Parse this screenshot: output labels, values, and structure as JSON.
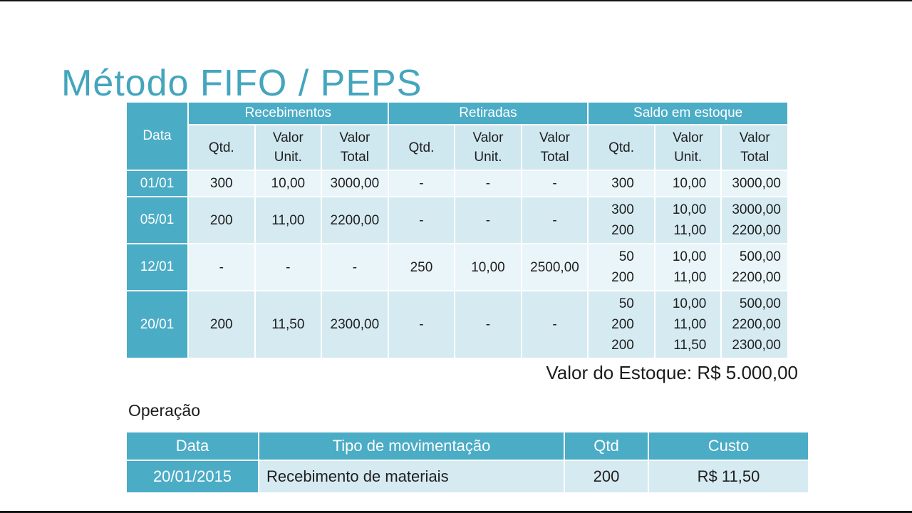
{
  "colors": {
    "accent_teal": "#4BACC6",
    "band_light": "#EAF5F9",
    "band_dark": "#D6EAF1",
    "subheader_fill": "#CFE7EF",
    "title_teal": "#44A5BD"
  },
  "title": "Método FIFO / PEPS",
  "stock_value_text": "Valor do Estoque: R$ 5.000,00",
  "operation_label": "Operação",
  "fifo_table": {
    "corner_header": "Data",
    "group_headers": [
      "Recebimentos",
      "Retiradas",
      "Saldo em estoque"
    ],
    "sub_headers": [
      "Qtd.",
      "Valor Unit.",
      "Valor Total",
      "Qtd.",
      "Valor Unit.",
      "Valor Total",
      "Qtd.",
      "Valor Unit.",
      "Valor Total"
    ],
    "rows": [
      {
        "date": "01/01",
        "cells": [
          [
            "300"
          ],
          [
            "10,00"
          ],
          [
            "3000,00"
          ],
          [
            "-"
          ],
          [
            "-"
          ],
          [
            "-"
          ],
          [
            "300"
          ],
          [
            "10,00"
          ],
          [
            "3000,00"
          ]
        ]
      },
      {
        "date": "05/01",
        "cells": [
          [
            "200"
          ],
          [
            "11,00"
          ],
          [
            "2200,00"
          ],
          [
            "-"
          ],
          [
            "-"
          ],
          [
            "-"
          ],
          [
            "300",
            "200"
          ],
          [
            "10,00",
            "11,00"
          ],
          [
            "3000,00",
            "2200,00"
          ]
        ]
      },
      {
        "date": "12/01",
        "cells": [
          [
            "-"
          ],
          [
            "-"
          ],
          [
            "-"
          ],
          [
            "250"
          ],
          [
            "10,00"
          ],
          [
            "2500,00"
          ],
          [
            "50",
            "200"
          ],
          [
            "10,00",
            "11,00"
          ],
          [
            "500,00",
            "2200,00"
          ]
        ]
      },
      {
        "date": "20/01",
        "cells": [
          [
            "200"
          ],
          [
            "11,50"
          ],
          [
            "2300,00"
          ],
          [
            "-"
          ],
          [
            "-"
          ],
          [
            "-"
          ],
          [
            "50",
            "200",
            "200"
          ],
          [
            "10,00",
            "11,00",
            "11,50"
          ],
          [
            "500,00",
            "2200,00",
            "2300,00"
          ]
        ]
      }
    ]
  },
  "operation_table": {
    "headers": [
      "Data",
      "Tipo de movimentação",
      "Qtd",
      "Custo"
    ],
    "rows": [
      {
        "date": "20/01/2015",
        "movement": "Recebimento de materiais",
        "qty": "200",
        "cost": "R$ 11,50"
      }
    ]
  }
}
